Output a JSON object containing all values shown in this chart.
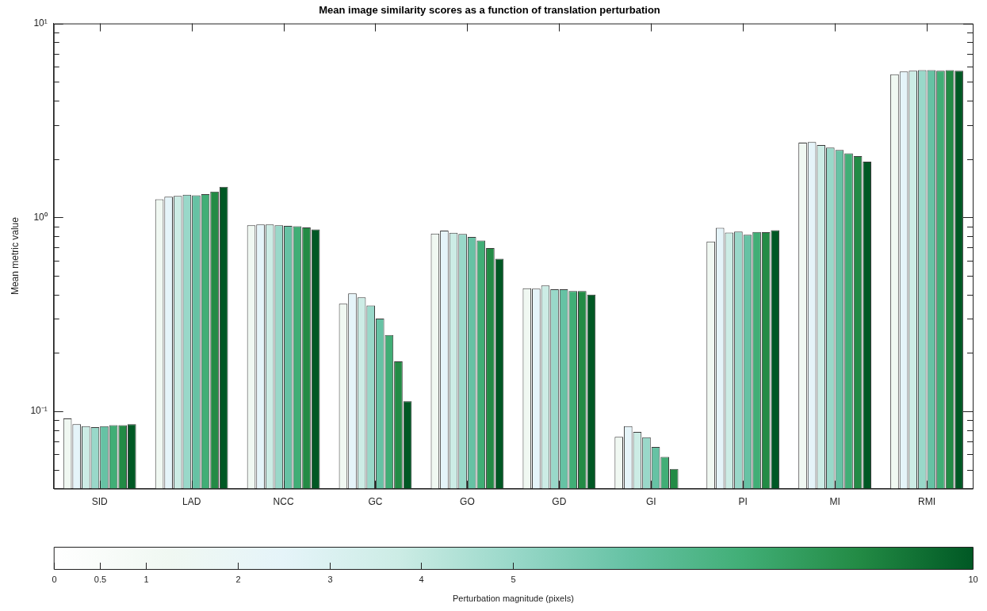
{
  "chart_data": {
    "type": "bar",
    "title": "Mean image similarity scores as a function of translation perturbation",
    "ylabel": "Mean metric value",
    "clabel": "Perturbation magnitude (pixels)",
    "categories": [
      "SID",
      "LAD",
      "NCC",
      "GC",
      "GO",
      "GD",
      "GI",
      "PI",
      "MI",
      "RMI"
    ],
    "series": [
      {
        "color": "#f0f8f2",
        "values": [
          0.092,
          1.24,
          0.911,
          0.359,
          0.825,
          0.431,
          0.074,
          0.751,
          2.43,
          5.47
        ]
      },
      {
        "color": "#e5f4f9",
        "values": [
          0.086,
          1.28,
          0.92,
          0.406,
          0.856,
          0.429,
          0.084,
          0.883,
          2.45,
          5.65
        ]
      },
      {
        "color": "#ccece5",
        "values": [
          0.084,
          1.29,
          0.92,
          0.387,
          0.833,
          0.446,
          0.0785,
          0.836,
          2.36,
          5.71
        ]
      },
      {
        "color": "#99d8c9",
        "values": [
          0.083,
          1.31,
          0.911,
          0.352,
          0.822,
          0.426,
          0.0736,
          0.845,
          2.29,
          5.75
        ]
      },
      {
        "color": "#66c2a4",
        "values": [
          0.084,
          1.3,
          0.906,
          0.301,
          0.793,
          0.426,
          0.0656,
          0.814,
          2.23,
          5.75
        ]
      },
      {
        "color": "#41ae76",
        "values": [
          0.085,
          1.32,
          0.9,
          0.248,
          0.761,
          0.418,
          0.0583,
          0.842,
          2.14,
          5.71
        ]
      },
      {
        "color": "#238b45",
        "values": [
          0.085,
          1.36,
          0.889,
          0.181,
          0.696,
          0.418,
          0.0505,
          0.839,
          2.07,
          5.75
        ]
      },
      {
        "color": "#005824",
        "values": [
          0.086,
          1.44,
          0.868,
          0.113,
          0.613,
          0.4,
          null,
          0.86,
          1.94,
          5.71
        ]
      }
    ],
    "log": true,
    "ylim": [
      0.04,
      10
    ],
    "yticks": [
      {
        "value": 0.05,
        "label": null
      },
      {
        "value": 0.06,
        "label": null
      },
      {
        "value": 0.07,
        "label": null
      },
      {
        "value": 0.08,
        "label": null
      },
      {
        "value": 0.09,
        "label": null
      },
      {
        "value": 0.1,
        "label": "10⁻¹"
      },
      {
        "value": 0.2,
        "label": null
      },
      {
        "value": 0.3,
        "label": null
      },
      {
        "value": 0.4,
        "label": null
      },
      {
        "value": 0.5,
        "label": null
      },
      {
        "value": 0.6,
        "label": null
      },
      {
        "value": 0.7,
        "label": null
      },
      {
        "value": 0.8,
        "label": null
      },
      {
        "value": 0.9,
        "label": null
      },
      {
        "value": 1,
        "label": "10⁰"
      },
      {
        "value": 2,
        "label": null
      },
      {
        "value": 3,
        "label": null
      },
      {
        "value": 4,
        "label": null
      },
      {
        "value": 5,
        "label": null
      },
      {
        "value": 6,
        "label": null
      },
      {
        "value": 7,
        "label": null
      },
      {
        "value": 8,
        "label": null
      },
      {
        "value": 9,
        "label": null
      },
      {
        "value": 10,
        "label": "10¹"
      }
    ],
    "clim": [
      0,
      10
    ],
    "cticks": [
      0,
      0.5,
      1,
      2,
      3,
      4,
      5,
      10
    ],
    "grid": false,
    "legend": false
  }
}
